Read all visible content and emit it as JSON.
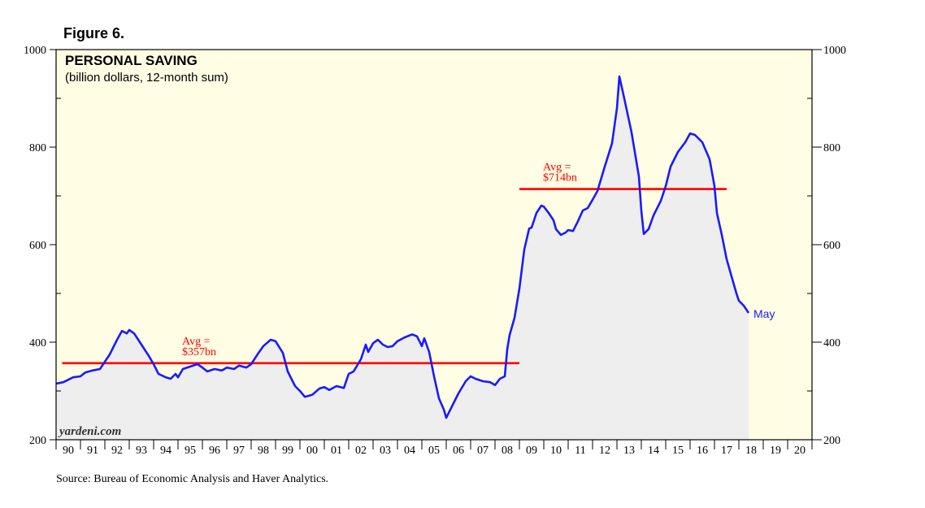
{
  "figure_label": "Figure 6.",
  "source": "Source: Bureau of Economic Analysis and Haver Analytics.",
  "watermark": "yardeni.com",
  "colors": {
    "background": "#fffde3",
    "area_fill": "#eeeeee",
    "series": "#1a1aff",
    "average": "#ff0000",
    "axis": "#000000"
  },
  "chart_data": {
    "type": "line",
    "title": "PERSONAL SAVING",
    "subtitle": "(billion dollars, 12-month sum)",
    "ylim": [
      200,
      1000
    ],
    "y_ticks": [
      "200",
      "400",
      "600",
      "800",
      "1000"
    ],
    "y_ticks_right": [
      "200",
      "400",
      "600",
      "800",
      "1000"
    ],
    "x_range": [
      1990,
      2021
    ],
    "x_tick_labels": [
      "90",
      "91",
      "92",
      "93",
      "94",
      "95",
      "96",
      "97",
      "98",
      "99",
      "00",
      "01",
      "02",
      "03",
      "04",
      "05",
      "06",
      "07",
      "08",
      "09",
      "10",
      "11",
      "12",
      "13",
      "14",
      "15",
      "16",
      "17",
      "18",
      "19",
      "20"
    ],
    "grid": false,
    "area_shaded": true,
    "series": [
      {
        "end_label": "May",
        "points": [
          [
            1990.0,
            315
          ],
          [
            1990.3,
            318
          ],
          [
            1990.7,
            328
          ],
          [
            1991.0,
            330
          ],
          [
            1991.2,
            338
          ],
          [
            1991.5,
            342
          ],
          [
            1991.8,
            345
          ],
          [
            1992.0,
            360
          ],
          [
            1992.2,
            375
          ],
          [
            1992.5,
            405
          ],
          [
            1992.7,
            423
          ],
          [
            1992.9,
            418
          ],
          [
            1993.0,
            425
          ],
          [
            1993.2,
            418
          ],
          [
            1993.5,
            395
          ],
          [
            1993.8,
            372
          ],
          [
            1994.0,
            355
          ],
          [
            1994.2,
            335
          ],
          [
            1994.5,
            328
          ],
          [
            1994.7,
            325
          ],
          [
            1994.9,
            335
          ],
          [
            1995.0,
            328
          ],
          [
            1995.2,
            345
          ],
          [
            1995.5,
            350
          ],
          [
            1995.8,
            355
          ],
          [
            1996.0,
            348
          ],
          [
            1996.2,
            340
          ],
          [
            1996.5,
            345
          ],
          [
            1996.8,
            342
          ],
          [
            1997.0,
            348
          ],
          [
            1997.3,
            345
          ],
          [
            1997.5,
            352
          ],
          [
            1997.8,
            348
          ],
          [
            1998.0,
            355
          ],
          [
            1998.3,
            378
          ],
          [
            1998.5,
            392
          ],
          [
            1998.8,
            405
          ],
          [
            1999.0,
            402
          ],
          [
            1999.3,
            378
          ],
          [
            1999.5,
            340
          ],
          [
            1999.8,
            310
          ],
          [
            2000.0,
            300
          ],
          [
            2000.2,
            288
          ],
          [
            2000.5,
            292
          ],
          [
            2000.8,
            305
          ],
          [
            2001.0,
            308
          ],
          [
            2001.2,
            302
          ],
          [
            2001.5,
            310
          ],
          [
            2001.8,
            306
          ],
          [
            2002.0,
            335
          ],
          [
            2002.2,
            340
          ],
          [
            2002.5,
            365
          ],
          [
            2002.7,
            395
          ],
          [
            2002.8,
            380
          ],
          [
            2003.0,
            398
          ],
          [
            2003.2,
            405
          ],
          [
            2003.4,
            395
          ],
          [
            2003.6,
            390
          ],
          [
            2003.8,
            392
          ],
          [
            2004.0,
            402
          ],
          [
            2004.3,
            410
          ],
          [
            2004.6,
            416
          ],
          [
            2004.8,
            412
          ],
          [
            2005.0,
            392
          ],
          [
            2005.1,
            408
          ],
          [
            2005.3,
            380
          ],
          [
            2005.5,
            330
          ],
          [
            2005.7,
            285
          ],
          [
            2005.9,
            262
          ],
          [
            2006.0,
            245
          ],
          [
            2006.2,
            265
          ],
          [
            2006.5,
            295
          ],
          [
            2006.8,
            320
          ],
          [
            2007.0,
            330
          ],
          [
            2007.2,
            325
          ],
          [
            2007.5,
            320
          ],
          [
            2007.8,
            318
          ],
          [
            2008.0,
            312
          ],
          [
            2008.2,
            325
          ],
          [
            2008.4,
            330
          ],
          [
            2008.5,
            385
          ],
          [
            2008.6,
            415
          ],
          [
            2008.8,
            450
          ],
          [
            2009.0,
            510
          ],
          [
            2009.2,
            590
          ],
          [
            2009.4,
            633
          ],
          [
            2009.5,
            635
          ],
          [
            2009.7,
            665
          ],
          [
            2009.9,
            680
          ],
          [
            2010.0,
            678
          ],
          [
            2010.2,
            665
          ],
          [
            2010.4,
            650
          ],
          [
            2010.5,
            632
          ],
          [
            2010.7,
            620
          ],
          [
            2010.9,
            625
          ],
          [
            2011.0,
            630
          ],
          [
            2011.2,
            628
          ],
          [
            2011.4,
            648
          ],
          [
            2011.6,
            670
          ],
          [
            2011.8,
            675
          ],
          [
            2012.0,
            692
          ],
          [
            2012.2,
            710
          ],
          [
            2012.5,
            760
          ],
          [
            2012.8,
            808
          ],
          [
            2013.0,
            880
          ],
          [
            2013.1,
            945
          ],
          [
            2013.3,
            900
          ],
          [
            2013.6,
            830
          ],
          [
            2013.9,
            740
          ],
          [
            2014.0,
            670
          ],
          [
            2014.1,
            622
          ],
          [
            2014.3,
            632
          ],
          [
            2014.5,
            660
          ],
          [
            2014.8,
            690
          ],
          [
            2015.0,
            720
          ],
          [
            2015.2,
            760
          ],
          [
            2015.5,
            790
          ],
          [
            2015.8,
            810
          ],
          [
            2016.0,
            828
          ],
          [
            2016.2,
            825
          ],
          [
            2016.5,
            810
          ],
          [
            2016.8,
            775
          ],
          [
            2017.0,
            720
          ],
          [
            2017.1,
            665
          ],
          [
            2017.3,
            620
          ],
          [
            2017.5,
            570
          ],
          [
            2017.7,
            535
          ],
          [
            2017.9,
            500
          ],
          [
            2018.0,
            485
          ],
          [
            2018.2,
            475
          ],
          [
            2018.4,
            460
          ]
        ]
      }
    ],
    "averages": [
      {
        "label_line1": "Avg =",
        "label_line2": "$357bn",
        "value": 357,
        "x_start": 1990.25,
        "x_end": 2009.0
      },
      {
        "label_line1": "Avg =",
        "label_line2": "$714bn",
        "value": 714,
        "x_start": 2009.0,
        "x_end": 2017.5
      }
    ]
  }
}
